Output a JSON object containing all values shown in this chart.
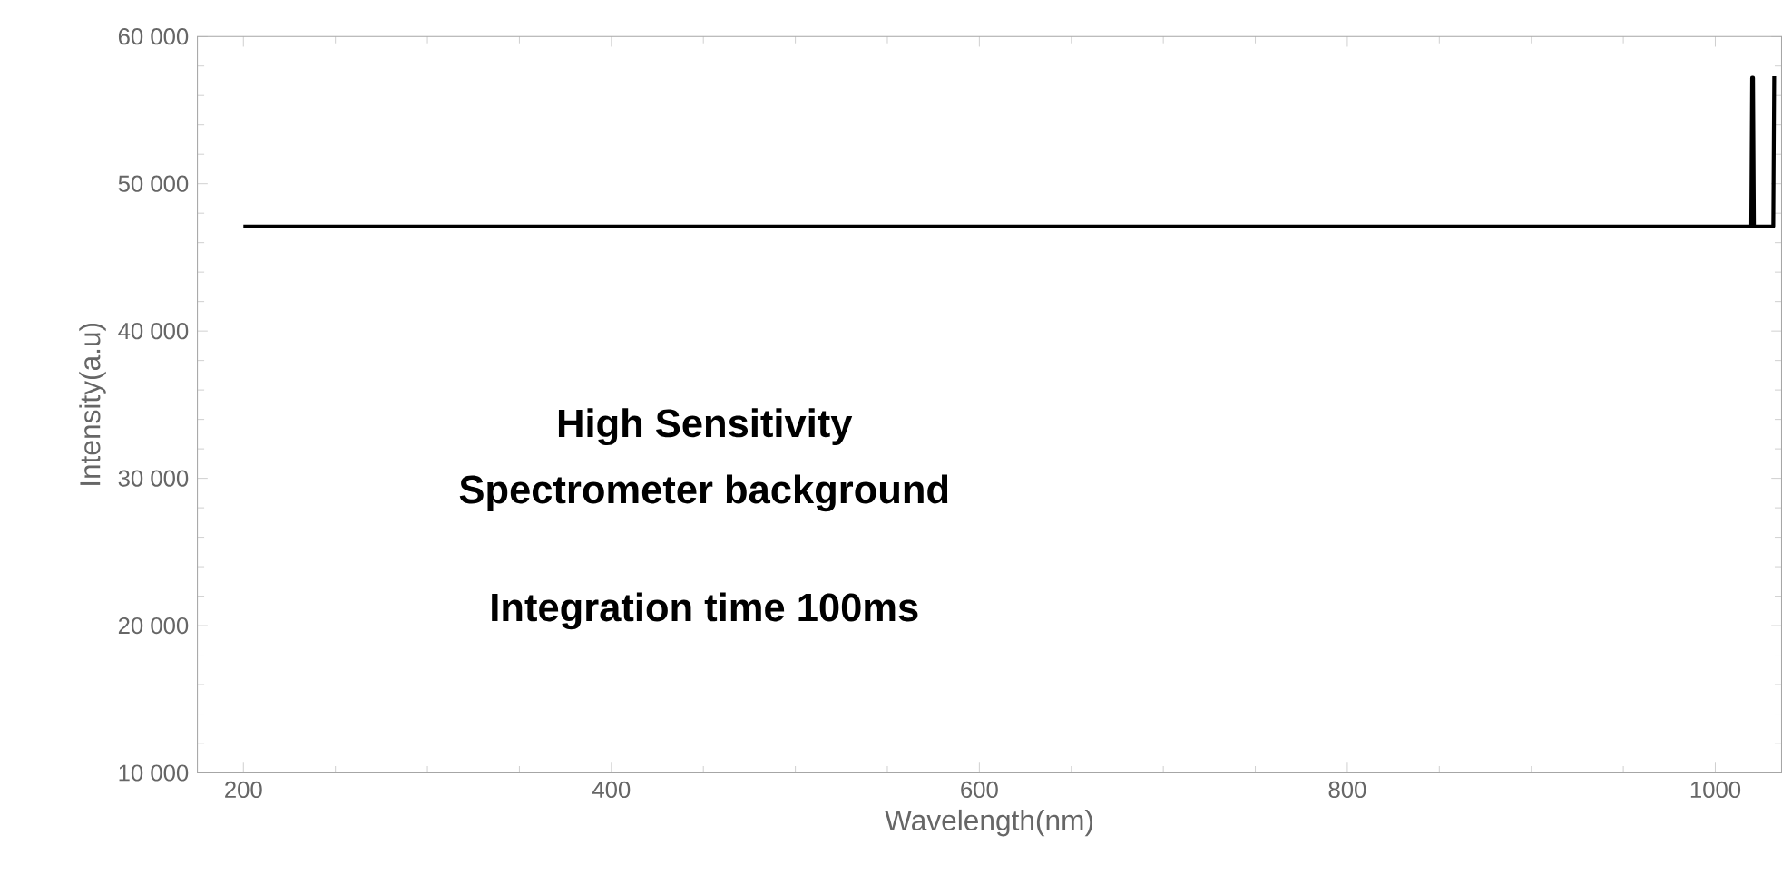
{
  "chart_data": {
    "type": "line",
    "xlabel": "Wavelength(nm)",
    "ylabel": "Intensity(a.u)",
    "x": [
      200,
      400,
      600,
      800,
      1000,
      1019.5,
      1020,
      1020.5,
      1021,
      1031.5,
      1032
    ],
    "series": [
      {
        "color": "#000000",
        "values": [
          47100,
          47100,
          47100,
          47100,
          47100,
          47100,
          57200,
          57200,
          47100,
          47100,
          57300
        ]
      }
    ],
    "xlim": [
      175,
      1036
    ],
    "ylim": [
      10000,
      60000
    ],
    "xticks": [
      200,
      400,
      600,
      800,
      1000
    ],
    "yticks": [
      {
        "value": 10000,
        "label": "10 000"
      },
      {
        "value": 20000,
        "label": "20 000"
      },
      {
        "value": 30000,
        "label": "30 000"
      },
      {
        "value": 40000,
        "label": "40 000"
      },
      {
        "value": 50000,
        "label": "50 000"
      },
      {
        "value": 60000,
        "label": "60 000"
      }
    ],
    "annotations": [
      "High Sensitivity",
      "Spectrometer background",
      "Integration time 100ms"
    ]
  }
}
